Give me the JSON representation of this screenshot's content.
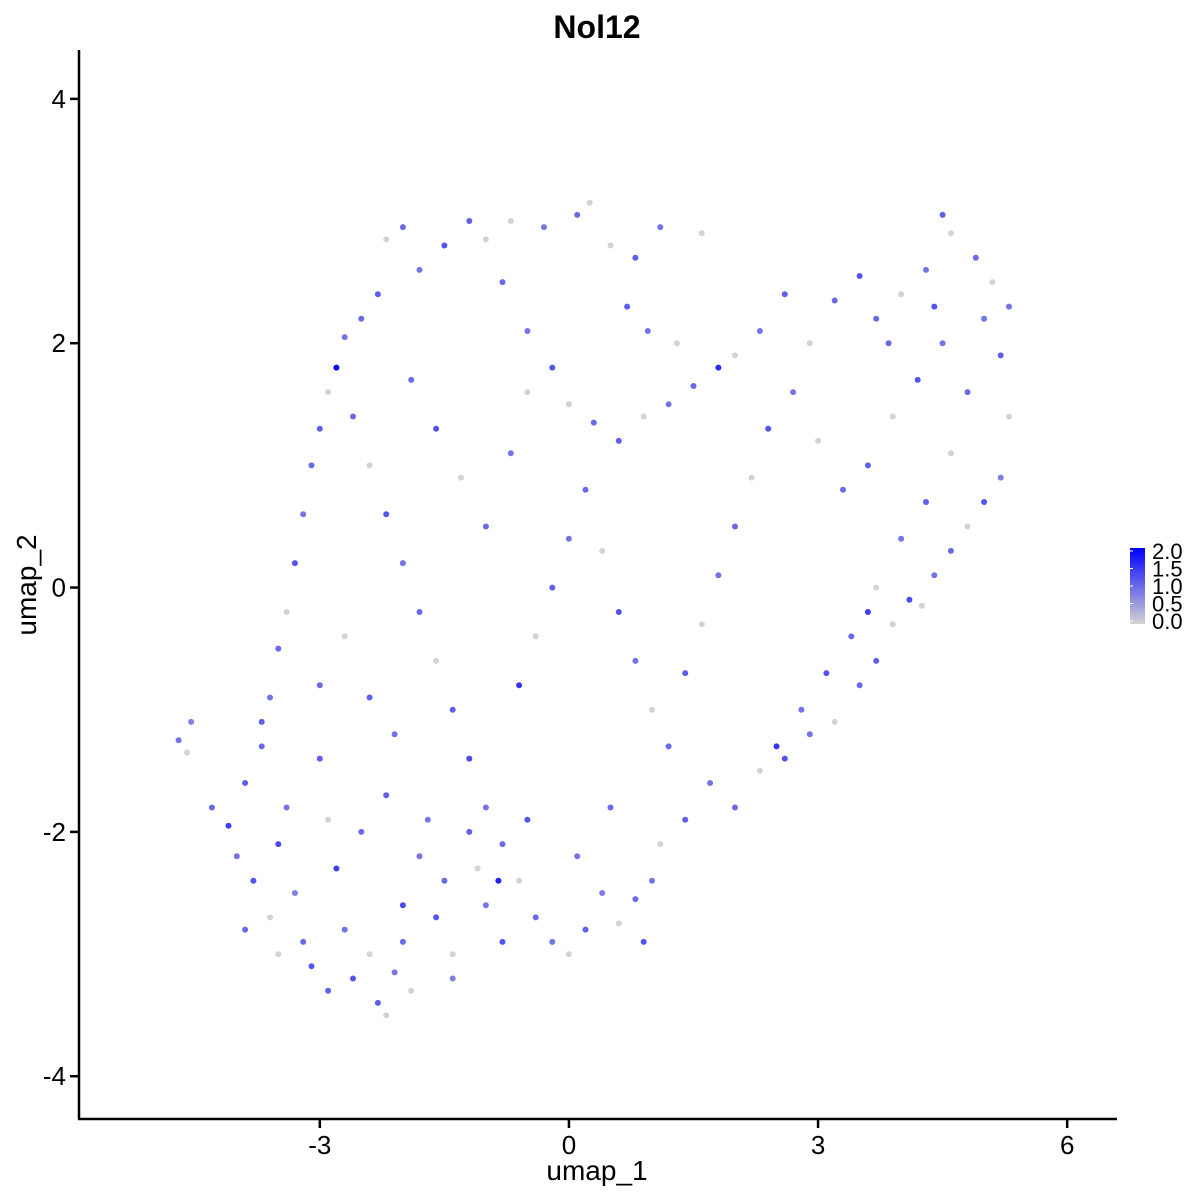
{
  "chart_data": {
    "type": "scatter",
    "title": "Nol12",
    "xlabel": "umap_1",
    "ylabel": "umap_2",
    "xlim": [
      -5.9,
      6.6
    ],
    "ylim": [
      -4.35,
      4.4
    ],
    "x_ticks": [
      -3,
      0,
      3,
      6
    ],
    "x_tick_labels": [
      "-3",
      "0",
      "3",
      "6"
    ],
    "y_ticks": [
      -4,
      -2,
      0,
      2,
      4
    ],
    "y_tick_labels": [
      "-4",
      "-2",
      "0",
      "2",
      "4"
    ],
    "grid": false,
    "legend": {
      "position": "right",
      "type": "colorbar",
      "breaks": [
        "2.0",
        "1.5",
        "1.0",
        "0.5",
        "0.0"
      ],
      "min": 0.0,
      "max": 2.0,
      "low_color": "#D3D3D3",
      "high_color": "#0000FF"
    },
    "points": [
      {
        "x": -4.7,
        "y": -1.25,
        "v": 0.9
      },
      {
        "x": -4.55,
        "y": -1.1,
        "v": 0.8
      },
      {
        "x": -4.6,
        "y": -1.35,
        "v": 0.0
      },
      {
        "x": -4.3,
        "y": -1.8,
        "v": 1.0
      },
      {
        "x": -4.1,
        "y": -1.95,
        "v": 1.4
      },
      {
        "x": -3.9,
        "y": -1.6,
        "v": 1.1
      },
      {
        "x": -4.0,
        "y": -2.2,
        "v": 0.9
      },
      {
        "x": -3.8,
        "y": -2.4,
        "v": 1.2
      },
      {
        "x": -3.6,
        "y": -2.7,
        "v": 0.0
      },
      {
        "x": -3.7,
        "y": -1.3,
        "v": 1.0
      },
      {
        "x": -3.4,
        "y": -1.8,
        "v": 0.9
      },
      {
        "x": -3.5,
        "y": -2.1,
        "v": 1.3
      },
      {
        "x": -3.3,
        "y": -2.5,
        "v": 0.8
      },
      {
        "x": -3.2,
        "y": -2.9,
        "v": 1.0
      },
      {
        "x": -3.1,
        "y": -3.1,
        "v": 1.2
      },
      {
        "x": -3.0,
        "y": -1.4,
        "v": 1.1
      },
      {
        "x": -2.9,
        "y": -1.9,
        "v": 0.0
      },
      {
        "x": -2.8,
        "y": -2.3,
        "v": 1.4
      },
      {
        "x": -2.7,
        "y": -2.8,
        "v": 0.9
      },
      {
        "x": -2.6,
        "y": -3.2,
        "v": 1.2
      },
      {
        "x": -2.4,
        "y": -3.0,
        "v": 0.0
      },
      {
        "x": -2.3,
        "y": -3.4,
        "v": 1.1
      },
      {
        "x": -2.2,
        "y": -3.5,
        "v": 0.0
      },
      {
        "x": -2.1,
        "y": -3.15,
        "v": 0.9
      },
      {
        "x": -2.0,
        "y": -2.6,
        "v": 1.3
      },
      {
        "x": -1.9,
        "y": -3.3,
        "v": 0.0
      },
      {
        "x": -2.5,
        "y": -2.0,
        "v": 1.0
      },
      {
        "x": -2.2,
        "y": -1.7,
        "v": 1.1
      },
      {
        "x": -1.8,
        "y": -2.2,
        "v": 0.9
      },
      {
        "x": -1.6,
        "y": -2.7,
        "v": 1.2
      },
      {
        "x": -1.4,
        "y": -3.0,
        "v": 0.0
      },
      {
        "x": -1.4,
        "y": -3.2,
        "v": 0.8
      },
      {
        "x": -1.5,
        "y": -2.4,
        "v": 1.0
      },
      {
        "x": -1.2,
        "y": -2.0,
        "v": 1.1
      },
      {
        "x": -1.0,
        "y": -2.6,
        "v": 0.9
      },
      {
        "x": -0.8,
        "y": -2.9,
        "v": 1.2
      },
      {
        "x": -0.6,
        "y": -2.4,
        "v": 0.0
      },
      {
        "x": -0.4,
        "y": -2.7,
        "v": 1.0
      },
      {
        "x": -0.2,
        "y": -2.9,
        "v": 0.9
      },
      {
        "x": 0.0,
        "y": -3.0,
        "v": 0.0
      },
      {
        "x": 0.2,
        "y": -2.8,
        "v": 1.1
      },
      {
        "x": 0.4,
        "y": -2.5,
        "v": 0.8
      },
      {
        "x": 0.6,
        "y": -2.75,
        "v": 0.0
      },
      {
        "x": 0.8,
        "y": -2.55,
        "v": 1.0
      },
      {
        "x": 1.0,
        "y": -2.4,
        "v": 0.9
      },
      {
        "x": 0.9,
        "y": -2.9,
        "v": 1.2
      },
      {
        "x": 1.1,
        "y": -2.1,
        "v": 0.0
      },
      {
        "x": 1.4,
        "y": -1.9,
        "v": 1.1
      },
      {
        "x": 1.7,
        "y": -1.6,
        "v": 0.9
      },
      {
        "x": 2.0,
        "y": -1.8,
        "v": 1.0
      },
      {
        "x": 2.3,
        "y": -1.5,
        "v": 0.0
      },
      {
        "x": 2.6,
        "y": -1.4,
        "v": 1.2
      },
      {
        "x": 2.9,
        "y": -1.2,
        "v": 0.9
      },
      {
        "x": 3.2,
        "y": -1.1,
        "v": 0.0
      },
      {
        "x": 3.5,
        "y": -0.8,
        "v": 1.0
      },
      {
        "x": 3.7,
        "y": -0.6,
        "v": 1.1
      },
      {
        "x": 3.9,
        "y": -0.3,
        "v": 0.0
      },
      {
        "x": 4.1,
        "y": -0.1,
        "v": 1.3
      },
      {
        "x": 4.4,
        "y": 0.1,
        "v": 0.9
      },
      {
        "x": 4.6,
        "y": 0.3,
        "v": 1.0
      },
      {
        "x": 4.8,
        "y": 0.5,
        "v": 0.0
      },
      {
        "x": 5.0,
        "y": 0.7,
        "v": 1.2
      },
      {
        "x": 5.2,
        "y": 0.9,
        "v": 0.8
      },
      {
        "x": 5.3,
        "y": 1.4,
        "v": 0.0
      },
      {
        "x": 5.2,
        "y": 1.9,
        "v": 1.1
      },
      {
        "x": 5.3,
        "y": 2.3,
        "v": 0.9
      },
      {
        "x": 5.1,
        "y": 2.5,
        "v": 0.0
      },
      {
        "x": 4.9,
        "y": 2.7,
        "v": 1.0
      },
      {
        "x": 4.6,
        "y": 2.9,
        "v": 0.0
      },
      {
        "x": 4.5,
        "y": 3.05,
        "v": 1.1
      },
      {
        "x": 4.3,
        "y": 2.6,
        "v": 0.9
      },
      {
        "x": 4.0,
        "y": 2.4,
        "v": 0.0
      },
      {
        "x": 3.7,
        "y": 2.2,
        "v": 1.0
      },
      {
        "x": 3.5,
        "y": 2.55,
        "v": 1.2
      },
      {
        "x": 3.2,
        "y": 2.35,
        "v": 1.0
      },
      {
        "x": 2.9,
        "y": 2.0,
        "v": 0.0
      },
      {
        "x": 2.6,
        "y": 2.4,
        "v": 1.1
      },
      {
        "x": 2.3,
        "y": 2.1,
        "v": 0.9
      },
      {
        "x": 2.0,
        "y": 1.9,
        "v": 0.0
      },
      {
        "x": 1.8,
        "y": 1.8,
        "v": 1.6
      },
      {
        "x": 1.5,
        "y": 1.65,
        "v": 1.0
      },
      {
        "x": 1.2,
        "y": 1.5,
        "v": 0.9
      },
      {
        "x": 0.9,
        "y": 1.4,
        "v": 0.0
      },
      {
        "x": 0.6,
        "y": 1.2,
        "v": 1.1
      },
      {
        "x": 0.3,
        "y": 1.35,
        "v": 1.0
      },
      {
        "x": 0.0,
        "y": 1.5,
        "v": 0.0
      },
      {
        "x": -0.2,
        "y": 1.8,
        "v": 1.2
      },
      {
        "x": -0.5,
        "y": 2.1,
        "v": 0.9
      },
      {
        "x": -0.8,
        "y": 2.5,
        "v": 1.0
      },
      {
        "x": -1.0,
        "y": 2.85,
        "v": 0.0
      },
      {
        "x": -1.2,
        "y": 3.0,
        "v": 1.1
      },
      {
        "x": -0.7,
        "y": 3.0,
        "v": 0.0
      },
      {
        "x": -0.3,
        "y": 2.95,
        "v": 0.9
      },
      {
        "x": 0.1,
        "y": 3.05,
        "v": 1.0
      },
      {
        "x": 0.25,
        "y": 3.15,
        "v": 0.0
      },
      {
        "x": 0.5,
        "y": 2.8,
        "v": 0.0
      },
      {
        "x": 0.8,
        "y": 2.7,
        "v": 1.1
      },
      {
        "x": 1.1,
        "y": 2.95,
        "v": 0.9
      },
      {
        "x": 1.6,
        "y": 2.9,
        "v": 0.0
      },
      {
        "x": -1.5,
        "y": 2.8,
        "v": 1.2
      },
      {
        "x": -1.8,
        "y": 2.6,
        "v": 0.9
      },
      {
        "x": -2.0,
        "y": 2.95,
        "v": 1.0
      },
      {
        "x": -2.2,
        "y": 2.85,
        "v": 0.0
      },
      {
        "x": -2.3,
        "y": 2.4,
        "v": 1.1
      },
      {
        "x": -2.5,
        "y": 2.2,
        "v": 1.0
      },
      {
        "x": -2.7,
        "y": 2.05,
        "v": 0.9
      },
      {
        "x": -2.8,
        "y": 1.8,
        "v": 2.0
      },
      {
        "x": -2.9,
        "y": 1.6,
        "v": 0.0
      },
      {
        "x": -3.0,
        "y": 1.3,
        "v": 1.1
      },
      {
        "x": -3.1,
        "y": 1.0,
        "v": 1.0
      },
      {
        "x": -3.2,
        "y": 0.6,
        "v": 0.9
      },
      {
        "x": -3.3,
        "y": 0.2,
        "v": 1.2
      },
      {
        "x": -3.4,
        "y": -0.2,
        "v": 0.0
      },
      {
        "x": -3.5,
        "y": -0.5,
        "v": 1.0
      },
      {
        "x": -3.6,
        "y": -0.9,
        "v": 0.9
      },
      {
        "x": -3.7,
        "y": -1.1,
        "v": 1.1
      },
      {
        "x": -2.6,
        "y": 1.4,
        "v": 1.0
      },
      {
        "x": -2.4,
        "y": 1.0,
        "v": 0.0
      },
      {
        "x": -2.2,
        "y": 0.6,
        "v": 1.2
      },
      {
        "x": -2.0,
        "y": 0.2,
        "v": 0.9
      },
      {
        "x": -1.8,
        "y": -0.2,
        "v": 1.0
      },
      {
        "x": -1.6,
        "y": -0.6,
        "v": 0.0
      },
      {
        "x": -1.4,
        "y": -1.0,
        "v": 1.1
      },
      {
        "x": -1.2,
        "y": -1.4,
        "v": 1.3
      },
      {
        "x": -1.0,
        "y": -1.8,
        "v": 0.9
      },
      {
        "x": -0.8,
        "y": -2.1,
        "v": 1.0
      },
      {
        "x": -0.6,
        "y": -0.8,
        "v": 1.5
      },
      {
        "x": -0.4,
        "y": -0.4,
        "v": 0.0
      },
      {
        "x": -0.2,
        "y": 0.0,
        "v": 1.1
      },
      {
        "x": 0.0,
        "y": 0.4,
        "v": 0.9
      },
      {
        "x": 0.2,
        "y": 0.8,
        "v": 1.0
      },
      {
        "x": 0.4,
        "y": 0.3,
        "v": 0.0
      },
      {
        "x": 0.6,
        "y": -0.2,
        "v": 1.2
      },
      {
        "x": 0.8,
        "y": -0.6,
        "v": 0.9
      },
      {
        "x": 1.0,
        "y": -1.0,
        "v": 0.0
      },
      {
        "x": 1.2,
        "y": -1.3,
        "v": 1.0
      },
      {
        "x": 1.4,
        "y": -0.7,
        "v": 1.1
      },
      {
        "x": 1.6,
        "y": -0.3,
        "v": 0.0
      },
      {
        "x": 1.8,
        "y": 0.1,
        "v": 0.9
      },
      {
        "x": 2.0,
        "y": 0.5,
        "v": 1.0
      },
      {
        "x": 2.2,
        "y": 0.9,
        "v": 0.0
      },
      {
        "x": 2.4,
        "y": 1.3,
        "v": 1.2
      },
      {
        "x": 2.7,
        "y": 1.6,
        "v": 0.9
      },
      {
        "x": 3.0,
        "y": 1.2,
        "v": 0.0
      },
      {
        "x": 3.3,
        "y": 0.8,
        "v": 1.0
      },
      {
        "x": 3.6,
        "y": 1.0,
        "v": 1.1
      },
      {
        "x": 3.9,
        "y": 1.4,
        "v": 0.0
      },
      {
        "x": 4.2,
        "y": 1.7,
        "v": 1.2
      },
      {
        "x": 4.5,
        "y": 2.0,
        "v": 0.9
      },
      {
        "x": 4.8,
        "y": 1.6,
        "v": 1.0
      },
      {
        "x": 4.6,
        "y": 1.1,
        "v": 0.0
      },
      {
        "x": 4.3,
        "y": 0.7,
        "v": 1.1
      },
      {
        "x": 4.0,
        "y": 0.4,
        "v": 0.9
      },
      {
        "x": 3.7,
        "y": 0.0,
        "v": 0.0
      },
      {
        "x": 3.4,
        "y": -0.4,
        "v": 1.0
      },
      {
        "x": 3.1,
        "y": -0.7,
        "v": 1.2
      },
      {
        "x": 2.8,
        "y": -1.0,
        "v": 0.9
      },
      {
        "x": -3.9,
        "y": -2.8,
        "v": 1.0
      },
      {
        "x": -3.5,
        "y": -3.0,
        "v": 0.0
      },
      {
        "x": -2.9,
        "y": -3.3,
        "v": 1.1
      },
      {
        "x": -2.0,
        "y": -2.9,
        "v": 1.0
      },
      {
        "x": -1.7,
        "y": -1.9,
        "v": 0.9
      },
      {
        "x": -1.1,
        "y": -2.3,
        "v": 0.0
      },
      {
        "x": -0.5,
        "y": -1.9,
        "v": 1.2
      },
      {
        "x": 0.1,
        "y": -2.2,
        "v": 0.9
      },
      {
        "x": 0.5,
        "y": -1.8,
        "v": 1.0
      },
      {
        "x": -0.85,
        "y": -2.4,
        "v": 1.7
      },
      {
        "x": -3.0,
        "y": -0.8,
        "v": 1.0
      },
      {
        "x": -2.7,
        "y": -0.4,
        "v": 0.0
      },
      {
        "x": -2.4,
        "y": -0.9,
        "v": 1.1
      },
      {
        "x": -2.1,
        "y": -1.2,
        "v": 0.9
      },
      {
        "x": -1.9,
        "y": 1.7,
        "v": 1.0
      },
      {
        "x": -1.6,
        "y": 1.3,
        "v": 1.2
      },
      {
        "x": -1.3,
        "y": 0.9,
        "v": 0.0
      },
      {
        "x": -1.0,
        "y": 0.5,
        "v": 1.0
      },
      {
        "x": -0.7,
        "y": 1.1,
        "v": 0.9
      },
      {
        "x": -0.5,
        "y": 1.6,
        "v": 0.0
      },
      {
        "x": 0.7,
        "y": 2.3,
        "v": 1.1
      },
      {
        "x": 0.95,
        "y": 2.1,
        "v": 0.9
      },
      {
        "x": 1.3,
        "y": 2.0,
        "v": 0.0
      },
      {
        "x": 3.85,
        "y": 2.0,
        "v": 1.0
      },
      {
        "x": 4.4,
        "y": 2.3,
        "v": 1.2
      },
      {
        "x": 5.0,
        "y": 2.2,
        "v": 0.9
      },
      {
        "x": 3.6,
        "y": -0.2,
        "v": 1.4
      },
      {
        "x": 4.25,
        "y": -0.15,
        "v": 0.0
      },
      {
        "x": 2.5,
        "y": -1.3,
        "v": 1.5
      }
    ]
  }
}
